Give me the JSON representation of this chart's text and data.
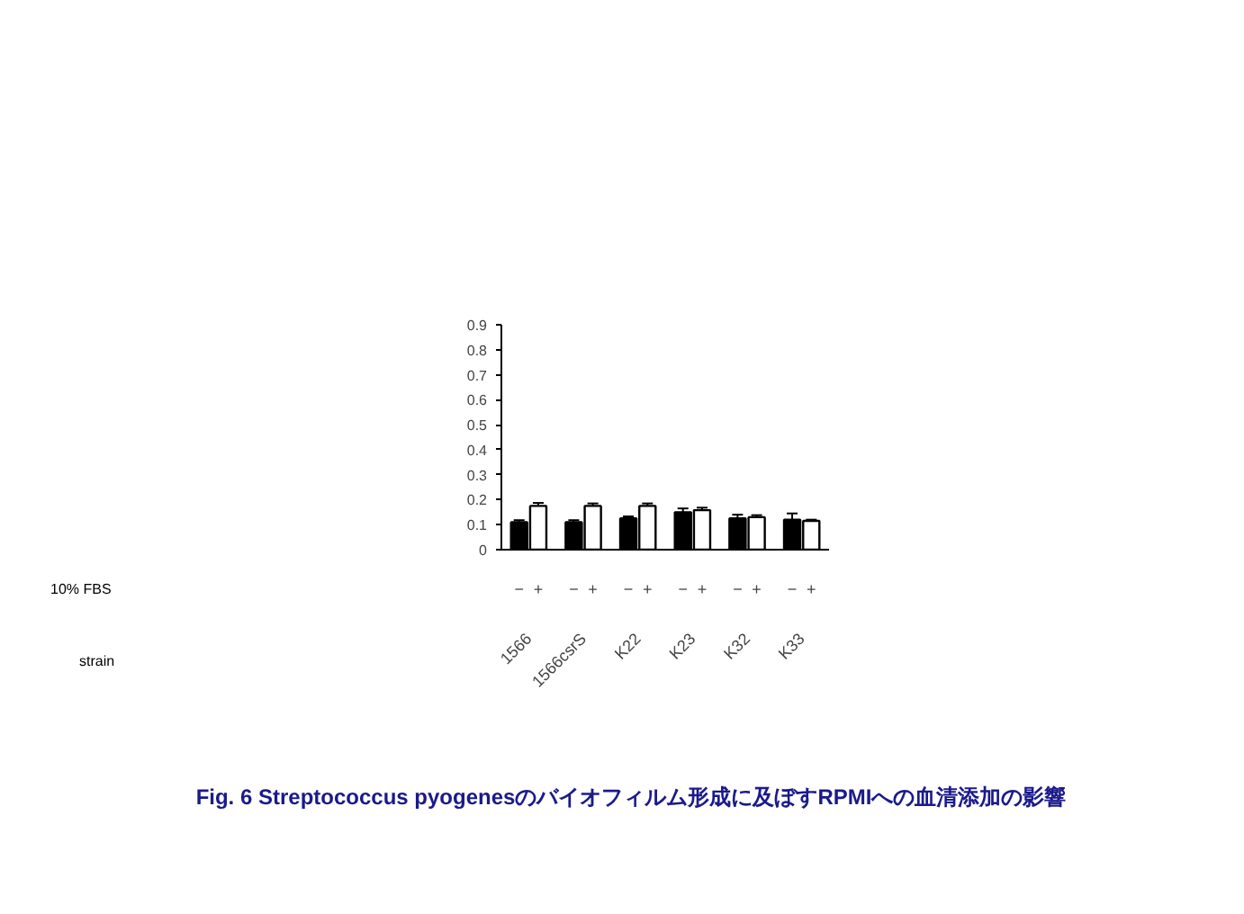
{
  "chart_data": {
    "type": "bar",
    "title": "Fig. 6 Streptococcus pyogenesのバイオフィルム形成に及ぼすRPMIへの血清添加の影響",
    "categories": [
      "1566",
      "1566csrS",
      "K22",
      "K23",
      "K32",
      "K33"
    ],
    "annotations": [
      "strain"
    ],
    "legend_title": "10% FBS",
    "series": [
      {
        "name": "−",
        "color": "#000000",
        "values": [
          0.11,
          0.11,
          0.125,
          0.15,
          0.125,
          0.12
        ],
        "errors": [
          0.008,
          0.008,
          0.008,
          0.015,
          0.015,
          0.025
        ]
      },
      {
        "name": "+",
        "color": "#ffffff",
        "values": [
          0.175,
          0.175,
          0.175,
          0.158,
          0.13,
          0.115
        ],
        "errors": [
          0.012,
          0.01,
          0.01,
          0.01,
          0.008,
          0.005
        ]
      }
    ],
    "ylim": [
      0,
      0.9
    ],
    "yticks": [
      0,
      0.1,
      0.2,
      0.3,
      0.4,
      0.5,
      0.6,
      0.7,
      0.8,
      0.9
    ],
    "grid": false
  }
}
